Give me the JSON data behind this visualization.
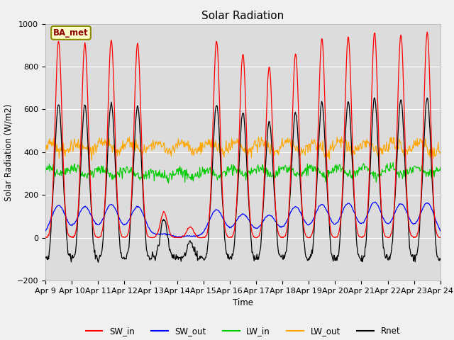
{
  "title": "Solar Radiation",
  "xlabel": "Time",
  "ylabel": "Solar Radiation (W/m2)",
  "ylim": [
    -200,
    1000
  ],
  "annotation": "BA_met",
  "x_tick_labels": [
    "Apr 9",
    "Apr 10",
    "Apr 11",
    "Apr 12",
    "Apr 13",
    "Apr 14",
    "Apr 15",
    "Apr 16",
    "Apr 17",
    "Apr 18",
    "Apr 19",
    "Apr 20",
    "Apr 21",
    "Apr 22",
    "Apr 23",
    "Apr 24"
  ],
  "colors": {
    "SW_in": "#ff0000",
    "SW_out": "#0000ff",
    "LW_in": "#00cc00",
    "LW_out": "#ffa500",
    "Rnet": "#000000"
  },
  "plot_bg": "#dcdcdc",
  "fig_bg": "#f0f0f0",
  "grid_color": "#ffffff",
  "legend_labels": [
    "SW_in",
    "SW_out",
    "LW_in",
    "LW_out",
    "Rnet"
  ]
}
